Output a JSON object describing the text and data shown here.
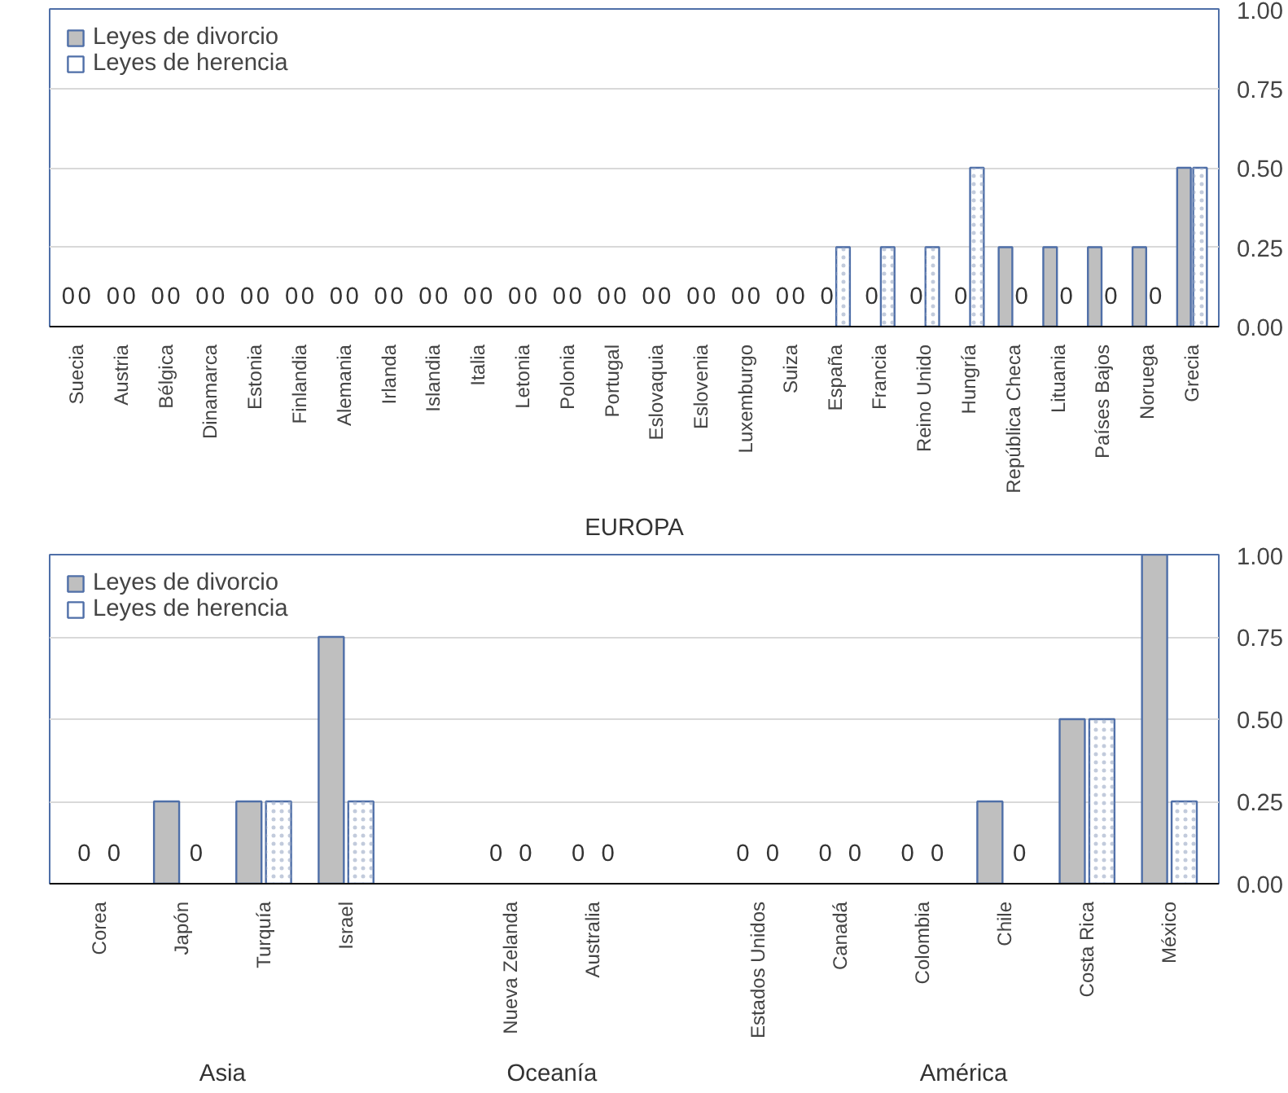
{
  "chart_data": [
    {
      "type": "bar",
      "categories": [
        "Suecia",
        "Austria",
        "Bélgica",
        "Dinamarca",
        "Estonia",
        "Finlandia",
        "Alemania",
        "Irlanda",
        "Islandia",
        "Italia",
        "Letonia",
        "Polonia",
        "Portugal",
        "Eslovaquia",
        "Eslovenia",
        "Luxemburgo",
        "Suiza",
        "España",
        "Francia",
        "Reino Unido",
        "Hungría",
        "República Checa",
        "Lituania",
        "Países Bajos",
        "Noruega",
        "Grecia"
      ],
      "series": [
        {
          "name": "Leyes de divorcio",
          "color": "#bfbfbf",
          "values": [
            0,
            0,
            0,
            0,
            0,
            0,
            0,
            0,
            0,
            0,
            0,
            0,
            0,
            0,
            0,
            0,
            0,
            0,
            0,
            0,
            0,
            0.25,
            0.25,
            0.25,
            0.25,
            0.5
          ],
          "value_labels": [
            "0",
            "0",
            "0",
            "0",
            "0",
            "0",
            "0",
            "0",
            "0",
            "0",
            "0",
            "0",
            "0",
            "0",
            "0",
            "0",
            "0",
            "0",
            "0",
            "0",
            "0",
            null,
            null,
            null,
            null,
            null
          ]
        },
        {
          "name": "Leyes de herencia",
          "color": "#ffffff",
          "values": [
            0,
            0,
            0,
            0,
            0,
            0,
            0,
            0,
            0,
            0,
            0,
            0,
            0,
            0,
            0,
            0,
            0,
            0.25,
            0.25,
            0.25,
            0.5,
            0,
            0,
            0,
            0,
            0.5
          ],
          "value_labels": [
            "0",
            "0",
            "0",
            "0",
            "0",
            "0",
            "0",
            "0",
            "0",
            "0",
            "0",
            "0",
            "0",
            "0",
            "0",
            "0",
            "0",
            null,
            null,
            null,
            null,
            "0",
            "0",
            "0",
            "0",
            null
          ]
        }
      ],
      "ylim": [
        0,
        1
      ],
      "yticks": [
        {
          "value": 0,
          "label": "0.00"
        },
        {
          "value": 0.25,
          "label": "0.25"
        },
        {
          "value": 0.5,
          "label": "0.50"
        },
        {
          "value": 0.75,
          "label": "0.75"
        },
        {
          "value": 1,
          "label": "1.00"
        }
      ],
      "grid": "y",
      "legend": "top left",
      "annotations": [
        "EUROPA"
      ]
    },
    {
      "type": "bar",
      "categories": [
        "Corea",
        "Japón",
        "Turquía",
        "Israel",
        null,
        "Nueva Zelanda",
        "Australia",
        null,
        "Estados Unidos",
        "Canadá",
        "Colombia",
        "Chile",
        "Costa Rica",
        "México"
      ],
      "series": [
        {
          "name": "Leyes de divorcio",
          "color": "#bfbfbf",
          "values": [
            0,
            0.25,
            0.25,
            0.75,
            null,
            0,
            0,
            null,
            0,
            0,
            0,
            0.25,
            0.5,
            1
          ],
          "value_labels": [
            "0",
            null,
            null,
            null,
            null,
            "0",
            "0",
            null,
            "0",
            "0",
            "0",
            null,
            null,
            null
          ]
        },
        {
          "name": "Leyes de herencia",
          "color": "#ffffff",
          "values": [
            0,
            0,
            0.25,
            0.25,
            null,
            0,
            0,
            null,
            0,
            0,
            0,
            0,
            0.5,
            0.25
          ],
          "value_labels": [
            "0",
            "0",
            null,
            null,
            null,
            "0",
            "0",
            null,
            "0",
            "0",
            "0",
            "0",
            null,
            null
          ]
        }
      ],
      "ylim": [
        0,
        1
      ],
      "yticks": [
        {
          "value": 0,
          "label": "0.00"
        },
        {
          "value": 0.25,
          "label": "0.25"
        },
        {
          "value": 0.5,
          "label": "0.50"
        },
        {
          "value": 0.75,
          "label": "0.75"
        },
        {
          "value": 1,
          "label": "1.00"
        }
      ],
      "grid": "y",
      "legend": "top left",
      "annotations": [
        "Asia",
        "Oceanía",
        "América"
      ]
    }
  ]
}
